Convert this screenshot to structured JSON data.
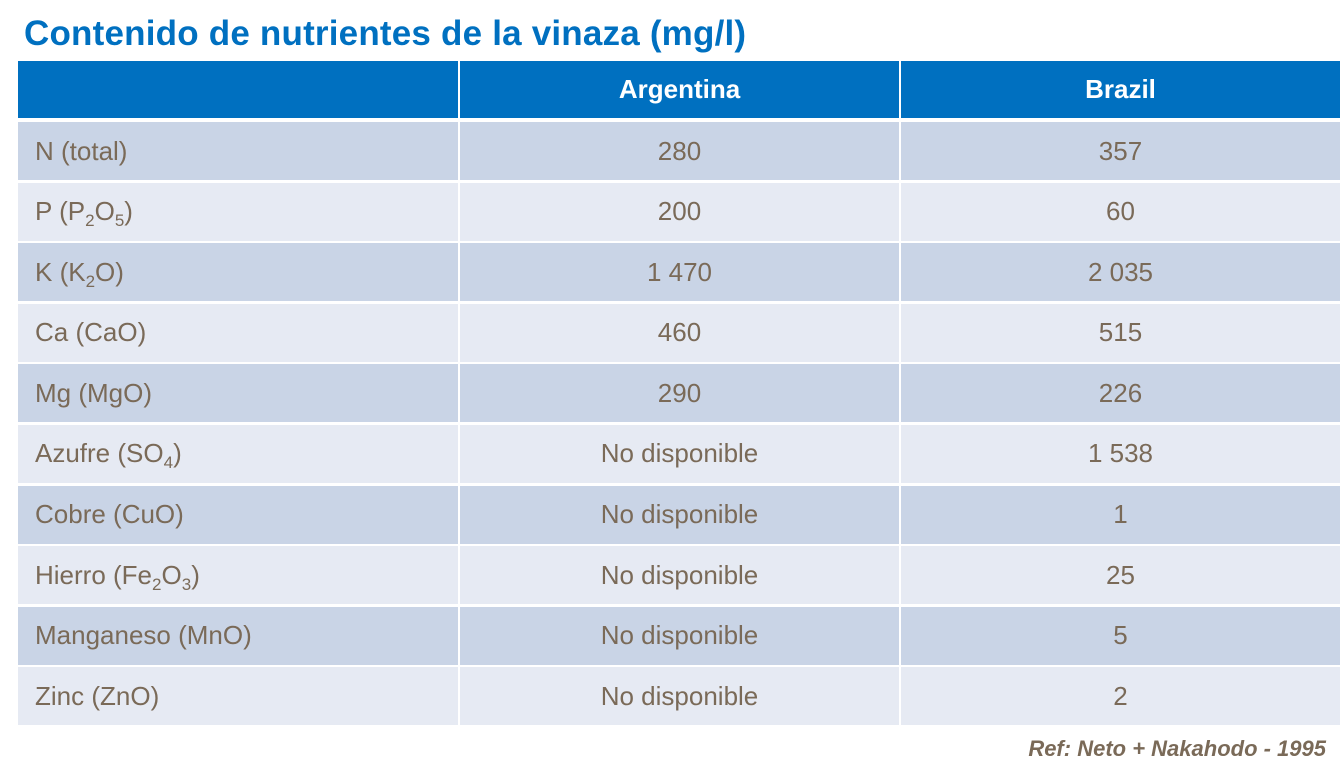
{
  "title": "Contenido de nutrientes de la vinaza (mg/l)",
  "colors": {
    "accent": "#0070c0",
    "row_dark": "#c9d4e6",
    "row_light": "#e6eaf3",
    "text": "#7a6a58"
  },
  "table": {
    "columns": [
      "",
      "Argentina",
      "Brazil"
    ],
    "rows": [
      {
        "label": [
          {
            "t": "N (total)"
          }
        ],
        "argentina": "280",
        "brazil": "357"
      },
      {
        "label": [
          {
            "t": "P (P"
          },
          {
            "t": "2",
            "sub": true
          },
          {
            "t": "O"
          },
          {
            "t": "5",
            "sub": true
          },
          {
            "t": ")"
          }
        ],
        "argentina": "200",
        "brazil": "60"
      },
      {
        "label": [
          {
            "t": "K (K"
          },
          {
            "t": "2",
            "sub": true
          },
          {
            "t": "O)"
          }
        ],
        "argentina": "1 470",
        "brazil": "2 035"
      },
      {
        "label": [
          {
            "t": "Ca (CaO)"
          }
        ],
        "argentina": "460",
        "brazil": "515"
      },
      {
        "label": [
          {
            "t": "Mg (MgO)"
          }
        ],
        "argentina": "290",
        "brazil": "226"
      },
      {
        "label": [
          {
            "t": "Azufre (SO"
          },
          {
            "t": "4",
            "sub": true
          },
          {
            "t": ")"
          }
        ],
        "argentina": "No disponible",
        "brazil": "1 538"
      },
      {
        "label": [
          {
            "t": "Cobre (CuO)"
          }
        ],
        "argentina": "No disponible",
        "brazil": "1"
      },
      {
        "label": [
          {
            "t": "Hierro (Fe"
          },
          {
            "t": "2",
            "sub": true
          },
          {
            "t": "O"
          },
          {
            "t": "3",
            "sub": true
          },
          {
            "t": ")"
          }
        ],
        "argentina": "No disponible",
        "brazil": "25"
      },
      {
        "label": [
          {
            "t": "Manganeso (MnO)"
          }
        ],
        "argentina": "No disponible",
        "brazil": "5"
      },
      {
        "label": [
          {
            "t": "Zinc (ZnO)"
          }
        ],
        "argentina": "No disponible",
        "brazil": "2"
      }
    ]
  },
  "reference": "Ref: Neto + Nakahodo - 1995"
}
